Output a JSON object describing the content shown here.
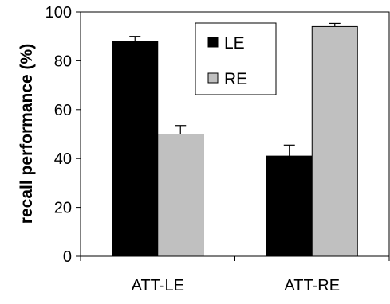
{
  "chart_data": {
    "type": "bar",
    "categories": [
      "ATT-LE",
      "ATT-RE"
    ],
    "series": [
      {
        "name": "LE",
        "values": [
          88,
          41
        ],
        "errors": [
          2,
          4.5
        ],
        "color": "#000000"
      },
      {
        "name": "RE",
        "values": [
          50,
          94
        ],
        "errors": [
          3.5,
          1.3
        ],
        "color": "#c0c0c0"
      }
    ],
    "ylabel": "recall performance (%)",
    "xlabel": "",
    "ylim": [
      0,
      100
    ],
    "yticks": [
      0,
      20,
      40,
      60,
      80,
      100
    ],
    "grid": false,
    "legend": "top-center, inside plot area"
  }
}
